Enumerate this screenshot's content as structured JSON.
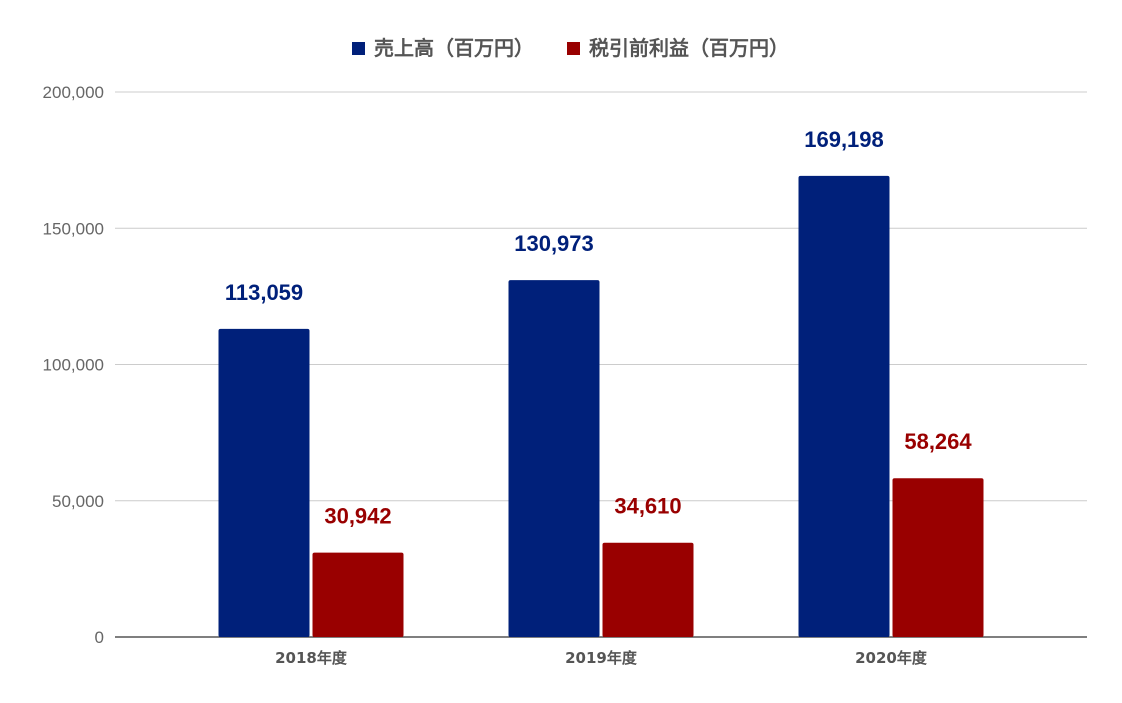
{
  "chart_data": {
    "type": "bar",
    "categories": [
      "2018年度",
      "2019年度",
      "2020年度"
    ],
    "series": [
      {
        "name": "売上高（百万円）",
        "values": [
          113059,
          130973,
          169198
        ],
        "labels": [
          "113,059",
          "130,973",
          "169,198"
        ],
        "color": "#00207a"
      },
      {
        "name": "税引前利益（百万円）",
        "values": [
          30942,
          34610,
          58264
        ],
        "labels": [
          "30,942",
          "34,610",
          "58,264"
        ],
        "color": "#990000"
      }
    ],
    "yticks": [
      {
        "value": 0,
        "label": "0"
      },
      {
        "value": 50000,
        "label": "50,000"
      },
      {
        "value": 100000,
        "label": "100,000"
      },
      {
        "value": 150000,
        "label": "150,000"
      },
      {
        "value": 200000,
        "label": "200,000"
      }
    ],
    "ylim": [
      0,
      200000
    ],
    "grid": true,
    "legend_position": "top-center",
    "title": "",
    "xlabel": "",
    "ylabel": ""
  }
}
